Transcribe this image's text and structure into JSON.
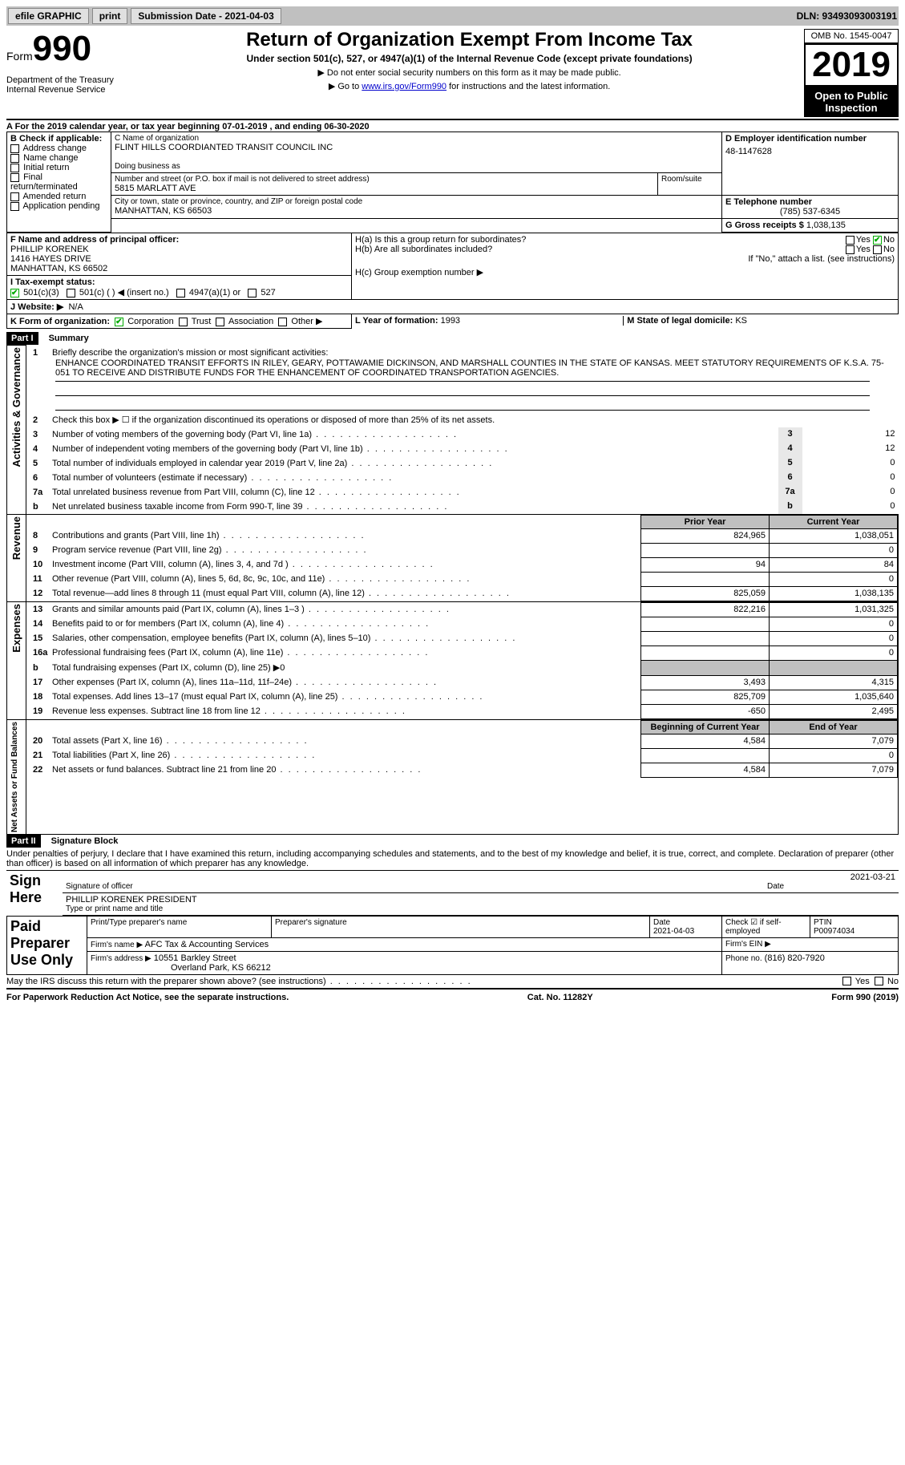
{
  "topbar": {
    "efile": "efile GRAPHIC",
    "print": "print",
    "sub_date_label": "Submission Date - 2021-04-03",
    "dln": "DLN: 93493093003191"
  },
  "header": {
    "form_word": "Form",
    "form_num": "990",
    "title": "Return of Organization Exempt From Income Tax",
    "subtitle": "Under section 501(c), 527, or 4947(a)(1) of the Internal Revenue Code (except private foundations)",
    "note1": "▶ Do not enter social security numbers on this form as it may be made public.",
    "note2_pre": "▶ Go to ",
    "note2_link": "www.irs.gov/Form990",
    "note2_post": " for instructions and the latest information.",
    "dept": "Department of the Treasury",
    "irs": "Internal Revenue Service",
    "omb": "OMB No. 1545-0047",
    "year": "2019",
    "inspect1": "Open to Public",
    "inspect2": "Inspection"
  },
  "period": "A For the 2019 calendar year, or tax year beginning 07-01-2019   , and ending 06-30-2020",
  "boxB": {
    "label": "B Check if applicable:",
    "items": [
      "Address change",
      "Name change",
      "Initial return",
      "Final return/terminated",
      "Amended return",
      "Application pending"
    ]
  },
  "boxC": {
    "name_label": "C Name of organization",
    "name": "FLINT HILLS COORDIANTED TRANSIT COUNCIL INC",
    "dba_label": "Doing business as",
    "street_label": "Number and street (or P.O. box if mail is not delivered to street address)",
    "room_label": "Room/suite",
    "street": "5815 MARLATT AVE",
    "city_label": "City or town, state or province, country, and ZIP or foreign postal code",
    "city": "MANHATTAN, KS  66503"
  },
  "boxD": {
    "label": "D Employer identification number",
    "val": "48-1147628"
  },
  "boxE": {
    "label": "E Telephone number",
    "val": "(785) 537-6345"
  },
  "boxG": {
    "label": "G Gross receipts $",
    "val": "1,038,135"
  },
  "boxF": {
    "label": "F  Name and address of principal officer:",
    "name": "PHILLIP KORENEK",
    "addr1": "1416 HAYES DRIVE",
    "addr2": "MANHATTAN, KS  66502"
  },
  "boxH": {
    "a": "H(a)  Is this a group return for subordinates?",
    "b": "H(b)  Are all subordinates included?",
    "bnote": "If \"No,\" attach a list. (see instructions)",
    "c": "H(c)  Group exemption number ▶",
    "yes": "Yes",
    "no": "No"
  },
  "boxI": {
    "label": "I  Tax-exempt status:",
    "o1": "501(c)(3)",
    "o2": "501(c) (  ) ◀ (insert no.)",
    "o3": "4947(a)(1) or",
    "o4": "527"
  },
  "boxJ": {
    "label": "J  Website: ▶",
    "val": "N/A"
  },
  "boxK": {
    "label": "K Form of organization:",
    "corp": "Corporation",
    "trust": "Trust",
    "assoc": "Association",
    "other": "Other ▶"
  },
  "boxL": {
    "label": "L Year of formation:",
    "val": "1993"
  },
  "boxM": {
    "label": "M State of legal domicile:",
    "val": "KS"
  },
  "part1": {
    "num": "Part I",
    "title": "Summary",
    "l1": "Briefly describe the organization's mission or most significant activities:",
    "l1text": "ENHANCE COORDINATED TRANSIT EFFORTS IN RILEY, GEARY, POTTAWAMIE DICKINSON, AND MARSHALL COUNTIES IN THE STATE OF KANSAS. MEET STATUTORY REQUIREMENTS OF K.S.A. 75-051 TO RECEIVE AND DISTRIBUTE FUNDS FOR THE ENHANCEMENT OF COORDINATED TRANSPORTATION AGENCIES.",
    "l2": "Check this box ▶ ☐  if the organization discontinued its operations or disposed of more than 25% of its net assets.",
    "sideA": "Activities & Governance",
    "sideR": "Revenue",
    "sideE": "Expenses",
    "sideN": "Net Assets or Fund Balances",
    "rowsA": [
      {
        "n": "3",
        "d": "Number of voting members of the governing body (Part VI, line 1a)",
        "v": "12"
      },
      {
        "n": "4",
        "d": "Number of independent voting members of the governing body (Part VI, line 1b)",
        "v": "12"
      },
      {
        "n": "5",
        "d": "Total number of individuals employed in calendar year 2019 (Part V, line 2a)",
        "v": "0"
      },
      {
        "n": "6",
        "d": "Total number of volunteers (estimate if necessary)",
        "v": "0"
      },
      {
        "n": "7a",
        "d": "Total unrelated business revenue from Part VIII, column (C), line 12",
        "v": "0"
      },
      {
        "n": "b",
        "d": "Net unrelated business taxable income from Form 990-T, line 39",
        "v": "0"
      }
    ],
    "colPrior": "Prior Year",
    "colCurrent": "Current Year",
    "rowsR": [
      {
        "n": "8",
        "d": "Contributions and grants (Part VIII, line 1h)",
        "p": "824,965",
        "c": "1,038,051"
      },
      {
        "n": "9",
        "d": "Program service revenue (Part VIII, line 2g)",
        "p": "",
        "c": "0"
      },
      {
        "n": "10",
        "d": "Investment income (Part VIII, column (A), lines 3, 4, and 7d )",
        "p": "94",
        "c": "84"
      },
      {
        "n": "11",
        "d": "Other revenue (Part VIII, column (A), lines 5, 6d, 8c, 9c, 10c, and 11e)",
        "p": "",
        "c": "0"
      },
      {
        "n": "12",
        "d": "Total revenue—add lines 8 through 11 (must equal Part VIII, column (A), line 12)",
        "p": "825,059",
        "c": "1,038,135"
      }
    ],
    "rowsE": [
      {
        "n": "13",
        "d": "Grants and similar amounts paid (Part IX, column (A), lines 1–3 )",
        "p": "822,216",
        "c": "1,031,325"
      },
      {
        "n": "14",
        "d": "Benefits paid to or for members (Part IX, column (A), line 4)",
        "p": "",
        "c": "0"
      },
      {
        "n": "15",
        "d": "Salaries, other compensation, employee benefits (Part IX, column (A), lines 5–10)",
        "p": "",
        "c": "0"
      },
      {
        "n": "16a",
        "d": "Professional fundraising fees (Part IX, column (A), line 11e)",
        "p": "",
        "c": "0"
      },
      {
        "n": "b",
        "d": "Total fundraising expenses (Part IX, column (D), line 25) ▶0",
        "p": "—",
        "c": "—"
      },
      {
        "n": "17",
        "d": "Other expenses (Part IX, column (A), lines 11a–11d, 11f–24e)",
        "p": "3,493",
        "c": "4,315"
      },
      {
        "n": "18",
        "d": "Total expenses. Add lines 13–17 (must equal Part IX, column (A), line 25)",
        "p": "825,709",
        "c": "1,035,640"
      },
      {
        "n": "19",
        "d": "Revenue less expenses. Subtract line 18 from line 12",
        "p": "-650",
        "c": "2,495"
      }
    ],
    "colBeg": "Beginning of Current Year",
    "colEnd": "End of Year",
    "rowsN": [
      {
        "n": "20",
        "d": "Total assets (Part X, line 16)",
        "p": "4,584",
        "c": "7,079"
      },
      {
        "n": "21",
        "d": "Total liabilities (Part X, line 26)",
        "p": "",
        "c": "0"
      },
      {
        "n": "22",
        "d": "Net assets or fund balances. Subtract line 21 from line 20",
        "p": "4,584",
        "c": "7,079"
      }
    ]
  },
  "part2": {
    "num": "Part II",
    "title": "Signature Block",
    "decl": "Under penalties of perjury, I declare that I have examined this return, including accompanying schedules and statements, and to the best of my knowledge and belief, it is true, correct, and complete. Declaration of preparer (other than officer) is based on all information of which preparer has any knowledge.",
    "sign_here": "Sign Here",
    "sig_officer": "Signature of officer",
    "sig_date": "Date",
    "sig_date_val": "2021-03-21",
    "officer_name": "PHILLIP KORENEK PRESIDENT",
    "type_name": "Type or print name and title",
    "paid": "Paid Preparer Use Only",
    "prep_name_label": "Print/Type preparer's name",
    "prep_sig_label": "Preparer's signature",
    "prep_date_label": "Date",
    "prep_date_val": "2021-04-03",
    "check_self": "Check ☑ if self-employed",
    "ptin_label": "PTIN",
    "ptin": "P00974034",
    "firm_name_label": "Firm's name  ▶",
    "firm_name": "AFC Tax & Accounting Services",
    "firm_ein_label": "Firm's EIN ▶",
    "firm_addr_label": "Firm's address ▶",
    "firm_addr1": "10551 Barkley Street",
    "firm_addr2": "Overland Park, KS  66212",
    "phone_label": "Phone no.",
    "phone": "(816) 820-7920",
    "discuss": "May the IRS discuss this return with the preparer shown above? (see instructions)"
  },
  "footer": {
    "left": "For Paperwork Reduction Act Notice, see the separate instructions.",
    "mid": "Cat. No. 11282Y",
    "right": "Form 990 (2019)"
  }
}
